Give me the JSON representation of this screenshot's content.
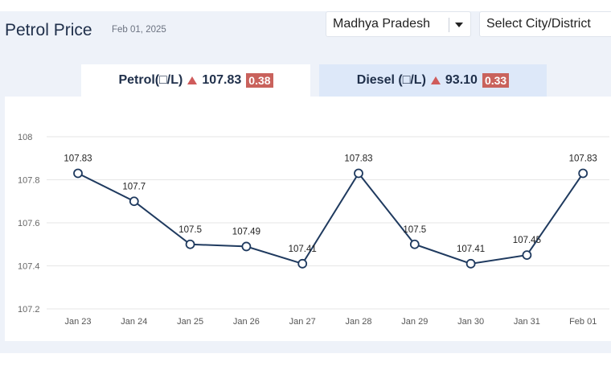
{
  "header": {
    "title": "Petrol Price",
    "date": "Feb 01, 2025"
  },
  "selects": {
    "state": "Madhya Pradesh",
    "city": "Select City/District"
  },
  "tabs": {
    "petrol": {
      "label": "Petrol(□/L)",
      "price": "107.83",
      "change": "0.38"
    },
    "diesel": {
      "label": "Diesel (□/L)",
      "price": "93.10",
      "change": "0.33"
    }
  },
  "colors": {
    "line": "#1f3a5f",
    "up": "#cf5b5b",
    "badge": "#c9625c",
    "active_tab": "#ffffff",
    "inactive_tab": "#dde8f9"
  },
  "chart_data": {
    "type": "line",
    "categories": [
      "Jan 23",
      "Jan 24",
      "Jan 25",
      "Jan 26",
      "Jan 27",
      "Jan 28",
      "Jan 29",
      "Jan 30",
      "Jan 31",
      "Feb 01"
    ],
    "values": [
      107.83,
      107.7,
      107.5,
      107.49,
      107.41,
      107.83,
      107.5,
      107.41,
      107.45,
      107.83
    ],
    "value_labels": [
      "107.83",
      "107.7",
      "107.5",
      "107.49",
      "107.41",
      "107.83",
      "107.5",
      "107.41",
      "107.45",
      "107.83"
    ],
    "yticks": [
      "108",
      "107.8",
      "107.6",
      "107.4",
      "107.2"
    ],
    "ylim": [
      107.2,
      108
    ],
    "grid": true
  }
}
